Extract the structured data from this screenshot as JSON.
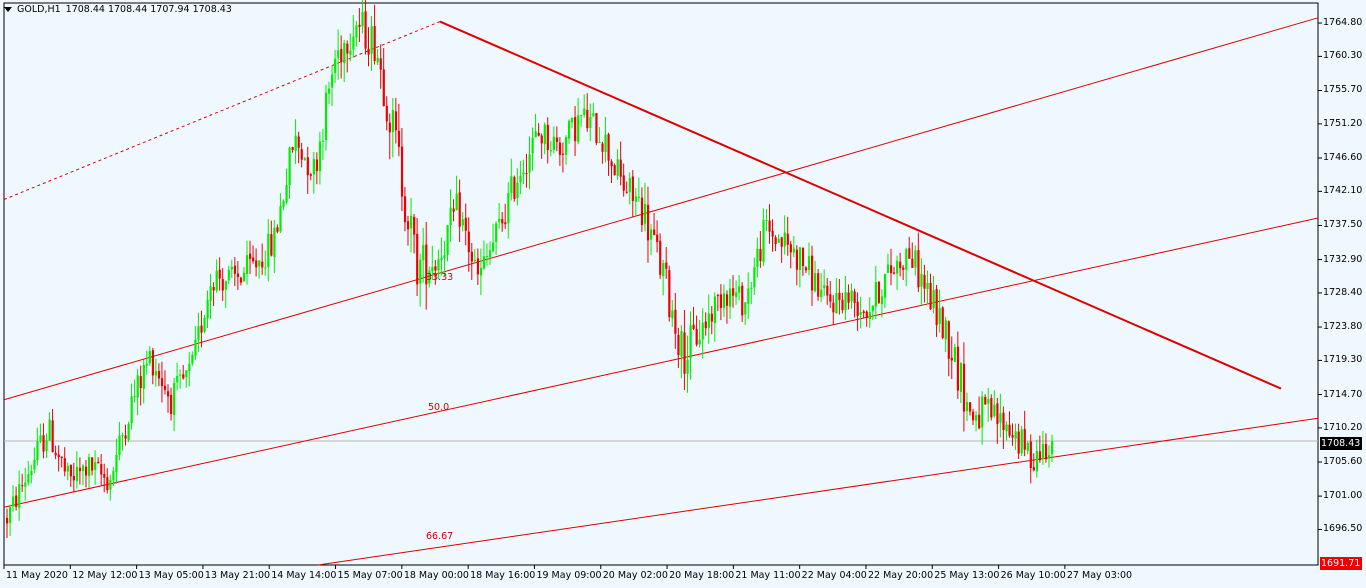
{
  "header": {
    "title": "GOLD,H1",
    "ohlc": "1708.44 1708.44 1707.94 1708.43"
  },
  "y_axis": [
    "1764.80",
    "1760.30",
    "1755.70",
    "1751.20",
    "1746.60",
    "1742.10",
    "1737.50",
    "1732.90",
    "1728.40",
    "1723.80",
    "1719.30",
    "1714.70",
    "1710.20",
    "1705.60",
    "1701.00",
    "1696.50"
  ],
  "x_axis": [
    "11 May 2020",
    "12 May 12:00",
    "13 May 05:00",
    "13 May 21:00",
    "14 May 14:00",
    "15 May 07:00",
    "18 May 00:00",
    "18 May 16:00",
    "19 May 09:00",
    "20 May 02:00",
    "20 May 18:00",
    "21 May 11:00",
    "22 May 04:00",
    "22 May 20:00",
    "25 May 13:00",
    "26 May 10:00",
    "27 May 03:00"
  ],
  "fib_labels": [
    "33.33",
    "50.0",
    "66.67"
  ],
  "current_price": "1708.43",
  "bottom_price": "1691.71",
  "colors": {
    "bull": "#00ee00",
    "bear": "#ee0000",
    "trend": "#dd0000",
    "bg": "#f0f8ff"
  },
  "chart_data": {
    "type": "candlestick",
    "symbol": "GOLD",
    "timeframe": "H1",
    "ylim": [
      1691.71,
      1767.5
    ],
    "anchors": [
      {
        "p": 1698,
        "v": 2.2
      },
      {
        "p": 1704,
        "v": 2.4
      },
      {
        "p": 1710,
        "v": 2.6
      },
      {
        "p": 1703,
        "v": 2.5
      },
      {
        "p": 1705,
        "v": 2.2
      },
      {
        "p": 1703,
        "v": 2.4
      },
      {
        "p": 1713,
        "v": 2.7
      },
      {
        "p": 1720,
        "v": 2.7
      },
      {
        "p": 1714,
        "v": 2.6
      },
      {
        "p": 1718,
        "v": 2.4
      },
      {
        "p": 1731,
        "v": 3.0
      },
      {
        "p": 1730,
        "v": 2.7
      },
      {
        "p": 1732,
        "v": 2.7
      },
      {
        "p": 1735,
        "v": 2.8
      },
      {
        "p": 1749,
        "v": 3.0
      },
      {
        "p": 1745,
        "v": 3.0
      },
      {
        "p": 1760,
        "v": 3.4
      },
      {
        "p": 1765,
        "v": 3.4
      },
      {
        "p": 1762,
        "v": 3.4
      },
      {
        "p": 1748,
        "v": 4.5
      },
      {
        "p": 1732,
        "v": 4.2
      },
      {
        "p": 1733,
        "v": 3.3
      },
      {
        "p": 1740,
        "v": 2.9
      },
      {
        "p": 1730,
        "v": 3.2
      },
      {
        "p": 1737,
        "v": 3.0
      },
      {
        "p": 1745,
        "v": 3.0
      },
      {
        "p": 1750,
        "v": 2.9
      },
      {
        "p": 1748,
        "v": 2.8
      },
      {
        "p": 1752,
        "v": 2.9
      },
      {
        "p": 1750,
        "v": 3.1
      },
      {
        "p": 1743,
        "v": 3.2
      },
      {
        "p": 1740,
        "v": 3.4
      },
      {
        "p": 1731,
        "v": 3.8
      },
      {
        "p": 1720,
        "v": 3.8
      },
      {
        "p": 1724,
        "v": 3.0
      },
      {
        "p": 1729,
        "v": 2.8
      },
      {
        "p": 1727,
        "v": 2.6
      },
      {
        "p": 1737,
        "v": 3.0
      },
      {
        "p": 1735,
        "v": 2.8
      },
      {
        "p": 1732,
        "v": 2.8
      },
      {
        "p": 1727,
        "v": 2.6
      },
      {
        "p": 1728,
        "v": 2.5
      },
      {
        "p": 1726,
        "v": 2.5
      },
      {
        "p": 1731,
        "v": 2.6
      },
      {
        "p": 1734,
        "v": 2.7
      },
      {
        "p": 1728,
        "v": 3.0
      },
      {
        "p": 1722,
        "v": 3.6
      },
      {
        "p": 1712,
        "v": 3.4
      },
      {
        "p": 1712,
        "v": 3.0
      },
      {
        "p": 1710,
        "v": 3.0
      },
      {
        "p": 1706,
        "v": 2.6
      },
      {
        "p": 1708.43,
        "v": 2.0
      }
    ],
    "trendlines": [
      {
        "name": "downtrend",
        "from": [
          "18 May 00:00",
          1765.0
        ],
        "to": [
          "27 May 03:00+",
          1715.5
        ]
      },
      {
        "name": "channel-upper",
        "from": [
          "11 May 2020",
          1714.0
        ],
        "to": [
          "end",
          1765.5
        ]
      },
      {
        "name": "channel-middle",
        "from": [
          "11 May 2020",
          1699.5
        ],
        "to": [
          "end",
          1738.5
        ]
      },
      {
        "name": "channel-lower",
        "from": [
          "13 May 21:00",
          1691.7
        ],
        "to": [
          "end",
          1711.5
        ]
      }
    ]
  }
}
